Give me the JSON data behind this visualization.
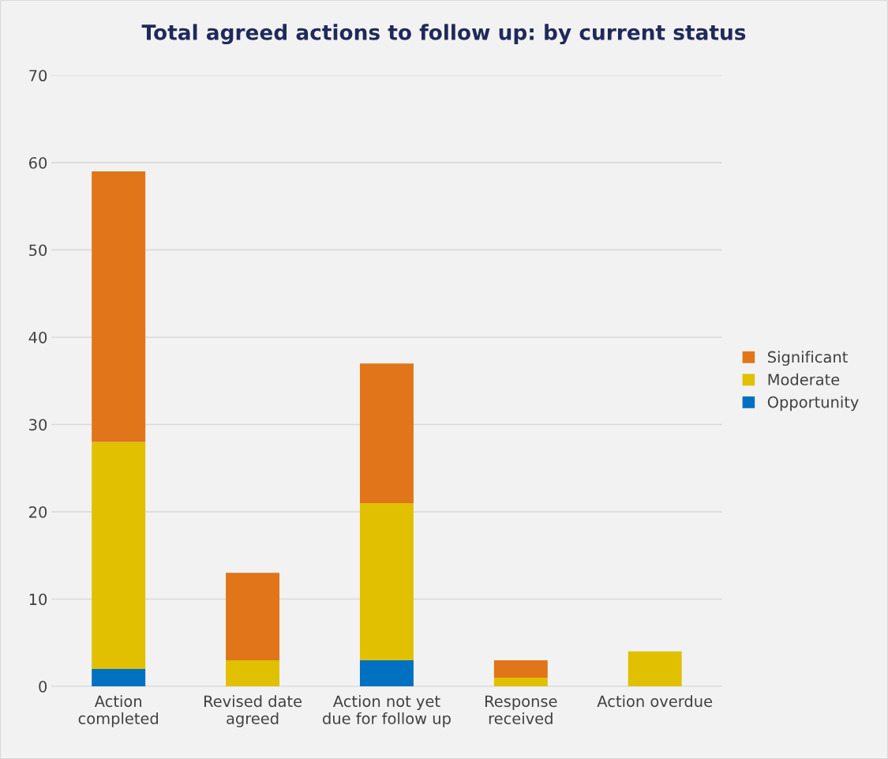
{
  "chart_data": {
    "type": "bar",
    "title": "Total agreed actions to follow up: by current status",
    "categories": [
      "Action\ncompleted",
      "Revised date\nagreed",
      "Action not yet\ndue for follow up",
      "Response\nreceived",
      "Action overdue"
    ],
    "stacked": true,
    "series": [
      {
        "name": "Opportunity",
        "color": "#0070c0",
        "values": [
          2,
          0,
          3,
          0,
          0
        ]
      },
      {
        "name": "Moderate",
        "color": "#e0c000",
        "values": [
          26,
          3,
          18,
          1,
          4
        ]
      },
      {
        "name": "Significant",
        "color": "#e07519",
        "values": [
          31,
          10,
          16,
          2,
          0
        ]
      }
    ],
    "ylim": [
      0,
      70
    ],
    "yticks": [
      0,
      10,
      20,
      30,
      40,
      50,
      60,
      70
    ],
    "grid": "y",
    "legend": "right"
  }
}
